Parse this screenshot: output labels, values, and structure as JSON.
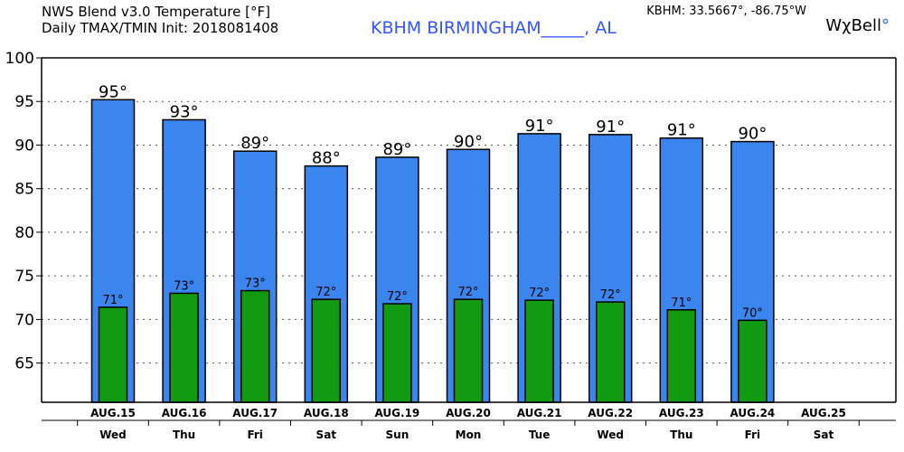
{
  "header": {
    "title_line1": "NWS Blend v3.0 Temperature [°F]",
    "title_line2": "Daily TMAX/TMIN Init: 2018081408",
    "station": "KBHM BIRMINGHAM_____, AL",
    "coords": "KBHM: 33.5667°, -86.75°W",
    "brand": "WχBell",
    "brand_mark": "°"
  },
  "colors": {
    "tmax": "#3a86ee",
    "tmin": "#129a12",
    "grid": "#555555",
    "station": "#3355ff"
  },
  "chart_data": {
    "type": "bar",
    "ylim": [
      60.5,
      100
    ],
    "yticks": [
      65,
      70,
      75,
      80,
      85,
      90,
      95,
      100
    ],
    "grid": true,
    "categories": [
      "AUG.15",
      "AUG.16",
      "AUG.17",
      "AUG.18",
      "AUG.19",
      "AUG.20",
      "AUG.21",
      "AUG.22",
      "AUG.23",
      "AUG.24",
      "AUG.25"
    ],
    "days": [
      "Wed",
      "Thu",
      "Fri",
      "Sat",
      "Sun",
      "Mon",
      "Tue",
      "Wed",
      "Thu",
      "Fri",
      "Sat"
    ],
    "series": [
      {
        "values": [
          95.2,
          92.9,
          89.3,
          87.6,
          88.6,
          89.5,
          91.3,
          91.2,
          90.8,
          90.4,
          null
        ],
        "labels": [
          "95°",
          "93°",
          "89°",
          "88°",
          "89°",
          "90°",
          "91°",
          "91°",
          "91°",
          "90°",
          ""
        ]
      },
      {
        "values": [
          71.4,
          73.0,
          73.3,
          72.3,
          71.8,
          72.3,
          72.2,
          72.0,
          71.1,
          69.9,
          null
        ],
        "labels": [
          "71°",
          "73°",
          "73°",
          "72°",
          "72°",
          "72°",
          "72°",
          "72°",
          "71°",
          "70°",
          ""
        ]
      }
    ]
  }
}
